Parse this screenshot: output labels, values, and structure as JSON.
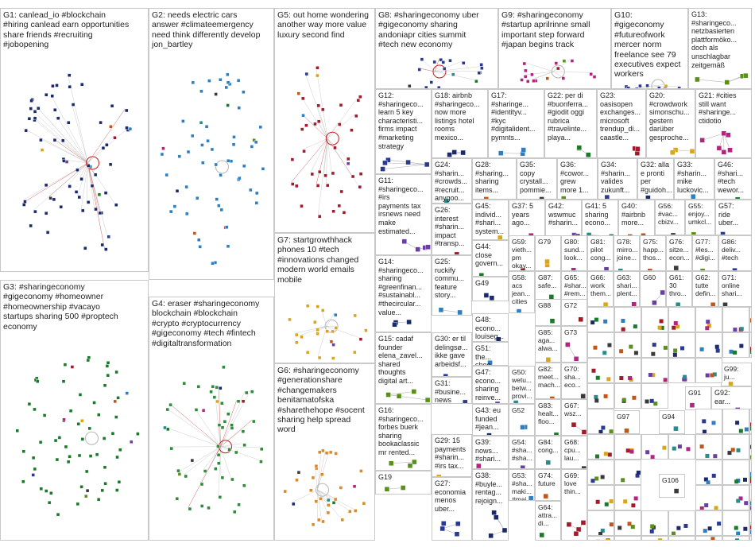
{
  "graph": {
    "colors": {
      "G1": "#1b2a6b",
      "G2": "#2f7fc0",
      "G3": "#1a7a2a",
      "G4": "#2e8b3a",
      "G5": "#a01c2c",
      "G6": "#d98a2b",
      "G7": "#d9a520",
      "G8": "#2a3b8f",
      "G9": "#b0267e",
      "G10": "#2a3b8f",
      "edge": "#b7b7b7",
      "edge_strong": "#c62020"
    },
    "groups": [
      {
        "id": "G1",
        "label": "G1: canlead_io #blockchain\n#hiring canlead earn opportunities\nshare friends #recruiting\n#jobopening"
      },
      {
        "id": "G2",
        "label": "G2: needs electric cars\nanswer #climateemergency\nneed think differently develop\njon_bartley"
      },
      {
        "id": "G3",
        "label": "G3: #sharingeconomy\n#gigeconomy #homeowner\n#homeownership #vacayo\nstartups sharing 500 #proptech\neconomy"
      },
      {
        "id": "G4",
        "label": "G4: eraser #sharingeconomy\nblockchain #blockchain\n#crypto #cryptocurrency\n#gigeconomy #tech #fintech\n#digitaltransformation"
      },
      {
        "id": "G5",
        "label": "G5: out home wondering\nanother way more value\nluxury second find"
      },
      {
        "id": "G6",
        "label": "G6: #sharingeconomy\n#generationshare\n#changemakers\nbenitamatofska\n#sharethehope #socent\nsharing help spread\nword"
      },
      {
        "id": "G7",
        "label": "G7: startgrowthhack\nphones 10 #tech\n#innovations changed\nmodern world emails\nmobile"
      },
      {
        "id": "G8",
        "label": "G8: #sharingeconomy uber\n#gigeconomy sharing\nandoniapr cities summit\n#tech new economy"
      },
      {
        "id": "G9",
        "label": "G9: #sharingeconomy\n#startup aprilrinne small\nimportant step forward\n#japan begins track"
      },
      {
        "id": "G10",
        "label": "G10:\n#gigeconomy\n#futureofwork\nmercer norm\nfreelance see 79\nexecutives expect\nworkers"
      },
      {
        "id": "G13",
        "label": "G13:\n#sharingeco...\nnetzbasierten\nplattformökо...\ndoch als\nunschlagbar\nzeitgemäß"
      },
      {
        "id": "G12",
        "label": "G12:\n#sharingeco...\nlearn 5 key\ncharacteristi...\nfirms impact\n#marketing\nstrategy"
      },
      {
        "id": "G18",
        "label": "G18: airbnb\n#sharingeco...\nnow more\nlistings hotel\nrooms\nmexico..."
      },
      {
        "id": "G17",
        "label": "G17:\n#sharinge...\n#identityv...\n#kyc\n#digitalident...\npymnts..."
      },
      {
        "id": "G22",
        "label": "G22: per di\n#buonferra...\n#giodit oggi\nrubrica\n#travelinte...\nplaya..."
      },
      {
        "id": "G23",
        "label": "G23:\noasisopen\nexchanges...\nmicrosoft\ntrendup_di...\ncaastle..."
      },
      {
        "id": "G20",
        "label": "G20:\n#crowdwork\nsimonschu...\ngestern\ndarüber\ngesproche..."
      },
      {
        "id": "G21",
        "label": "G21: #cities\nstill want\n#sharinge...\nctidotio"
      },
      {
        "id": "G11",
        "label": "G11:\n#sharingeco...\n#irs\npayments tax\nirsnews need\nmake\nestimated..."
      },
      {
        "id": "G24",
        "label": "G24:\n#sharin...\n#crowds...\n#recruit...\nanygoo...\nrecruitm..."
      },
      {
        "id": "G28",
        "label": "G28:\n#sharing...\nsharing\nitems..."
      },
      {
        "id": "G35",
        "label": "G35:\ncopy\ncrystall...\npommie..."
      },
      {
        "id": "G36",
        "label": "G36:\n#cowor...\ngrew\nmore 1..."
      },
      {
        "id": "G34",
        "label": "G34:\n#sharin...\nvalides\nzukunft..."
      },
      {
        "id": "G32",
        "label": "G32: alla\ne pronti\nper\n#guidoh..."
      },
      {
        "id": "G33",
        "label": "G33:\n#sharin...\nmike\nluckovic..."
      },
      {
        "id": "G46",
        "label": "G46:\n#shari...\n#tech\nwewor..."
      },
      {
        "id": "G26",
        "label": "G26:\ninterest\n#sharin...\nimpact\n#transp..."
      },
      {
        "id": "G45",
        "label": "G45:\nindivid...\n#shari...\nsystem..."
      },
      {
        "id": "G37",
        "label": "G37: 5\nyears\nago..."
      },
      {
        "id": "G42",
        "label": "G42:\nwswmuc\n#sharin..."
      },
      {
        "id": "G41",
        "label": "G41: 5\nsharing\necono..."
      },
      {
        "id": "G40",
        "label": "G40:\n#airbnb\nmore..."
      },
      {
        "id": "G56",
        "label": "G56:\n#vac...\ncbizv..."
      },
      {
        "id": "G55",
        "label": "G55:\nenjoy...\numkcl..."
      },
      {
        "id": "G57",
        "label": "G57:\nride\nuber..."
      },
      {
        "id": "G14",
        "label": "G14:\n#sharingeco...\nsharing\n#greenfinan...\n#sustainabl...\n#thecircular...\nvalue..."
      },
      {
        "id": "G25",
        "label": "G25:\nruckify\ncommu...\nfeature\nstory..."
      },
      {
        "id": "G44",
        "label": "G44:\nclose\ngovern..."
      },
      {
        "id": "G59",
        "label": "G59:\nvieth...\npm\nokay..."
      },
      {
        "id": "G79",
        "label": "G79"
      },
      {
        "id": "G80",
        "label": "G80:\nsund...\nlook..."
      },
      {
        "id": "G81",
        "label": "G81:\npilot\ncong..."
      },
      {
        "id": "G78",
        "label": "G78:\nmirro...\njoine..."
      },
      {
        "id": "G75",
        "label": "G75:\nhapp...\nthos..."
      },
      {
        "id": "G76",
        "label": "G76:\nsitze...\necon..."
      },
      {
        "id": "G77",
        "label": "G77:\n#les...\n#digi..."
      },
      {
        "id": "G86",
        "label": "G86:\ndeliv...\n#tech"
      },
      {
        "id": "G49",
        "label": "G49"
      },
      {
        "id": "G58",
        "label": "G58:\nacs\njean...\ncities"
      },
      {
        "id": "G87",
        "label": "G87:\nsafe..."
      },
      {
        "id": "G65",
        "label": "G65:\n#shar...\n#rem..."
      },
      {
        "id": "G66",
        "label": "G66:\nwork\nthem..."
      },
      {
        "id": "G63",
        "label": "G63:\nshari...\nplent..."
      },
      {
        "id": "G60",
        "label": "G60"
      },
      {
        "id": "G61",
        "label": "G61:\n30\nthro..."
      },
      {
        "id": "G62",
        "label": "G62:\ntutte\ndefin..."
      },
      {
        "id": "G71",
        "label": "G71:\nonline\nshari..."
      },
      {
        "id": "G15",
        "label": "G15: cadaf\nfounder\nelena_zavel...\nshared\nthoughts\ndigital art..."
      },
      {
        "id": "G30",
        "label": "G30: er til\ndelingsø...\nikke gave\narbeidsf..."
      },
      {
        "id": "G48",
        "label": "G48:\necono...\nlouiseg..."
      },
      {
        "id": "G51",
        "label": "G51:\nthe...\nshoo...\nday..."
      },
      {
        "id": "G88",
        "label": "G88"
      },
      {
        "id": "G72",
        "label": "G72"
      },
      {
        "id": "G85",
        "label": "G85:\naga...\nalwa..."
      },
      {
        "id": "G73",
        "label": "G73"
      },
      {
        "id": "G47",
        "label": "G47:\necono...\nsharing\nreinve..."
      },
      {
        "id": "G50",
        "label": "G50:\nwetu...\nbetw...\nprovi..."
      },
      {
        "id": "G82",
        "label": "G82:\nmeet...\nmach..."
      },
      {
        "id": "G70",
        "label": "G70:\nsha...\neco..."
      },
      {
        "id": "G16",
        "label": "G16:\n#sharingeco...\nforbes buerk\nsharing\nbookaclassic\nmr rented..."
      },
      {
        "id": "G31",
        "label": "G31:\n#busine...\nnews\n#nbrfolk"
      },
      {
        "id": "G43",
        "label": "G43: eu\nfunded\n#jean..."
      },
      {
        "id": "G52",
        "label": "G52"
      },
      {
        "id": "G83",
        "label": "G83:\nhealt...\nfloo..."
      },
      {
        "id": "G67",
        "label": "G67:\nwsz..."
      },
      {
        "id": "G29",
        "label": "G29: 15\npayments\n#sharin...\n#irs tax..."
      },
      {
        "id": "G39",
        "label": "G39:\nnows...\n#shari..."
      },
      {
        "id": "G54",
        "label": "G54:\n#sha...\n#sha..."
      },
      {
        "id": "G84",
        "label": "G84:\ncong..."
      },
      {
        "id": "G74",
        "label": "G74:\nfuture"
      },
      {
        "id": "G68",
        "label": "G68:\ncpu...\nlau..."
      },
      {
        "id": "G19",
        "label": "G19"
      },
      {
        "id": "G27",
        "label": "G27:\neconomia\nmenos\nuber..."
      },
      {
        "id": "G38",
        "label": "G38:\n#buyle...\nrentag...\nrejoign..."
      },
      {
        "id": "G53",
        "label": "G53:\n#sha...\nmaki...\n#mai..."
      },
      {
        "id": "G64",
        "label": "G64:\nattra...\ndi..."
      },
      {
        "id": "G69",
        "label": "G69:\nlove\nthin..."
      },
      {
        "id": "G99",
        "label": "G99:\nju..."
      },
      {
        "id": "G91",
        "label": "G91"
      },
      {
        "id": "G92",
        "label": "G92:\near..."
      },
      {
        "id": "G94",
        "label": "G94"
      },
      {
        "id": "G97",
        "label": "G97"
      },
      {
        "id": "G106",
        "label": "G106"
      }
    ]
  }
}
